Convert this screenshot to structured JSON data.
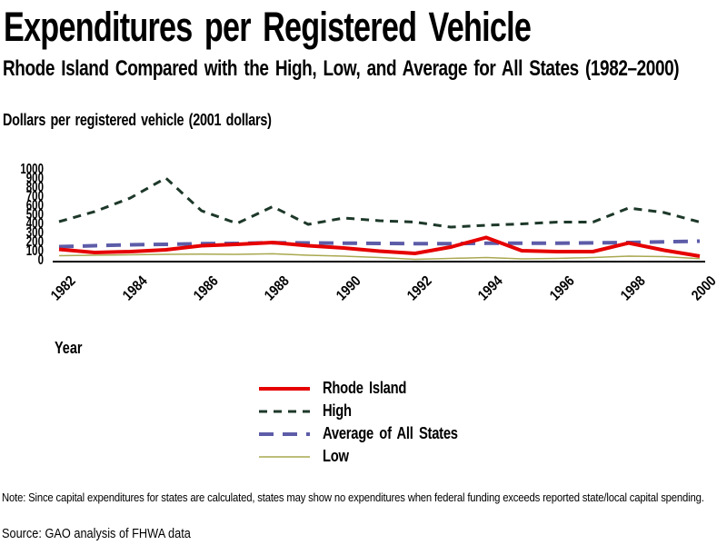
{
  "title": "Expenditures per Registered Vehicle",
  "subtitle": "Rhode Island Compared with the High, Low, and Average for All States (1982–2000)",
  "units_label": "Dollars per registered vehicle (2001 dollars)",
  "xaxis_label": "Year",
  "note": "Note: Since capital expenditures for states are calculated, states may show no expenditures when federal funding exceeds reported state/local capital spending.",
  "source": "Source: GAO analysis of FHWA data",
  "colors": {
    "rhode_island": "#e60000",
    "high": "#1d3829",
    "average": "#5c5ca8",
    "low": "#a9a850",
    "axis": "#000000",
    "text": "#000000",
    "background": "#ffffff"
  },
  "chart_data": {
    "type": "line",
    "title": "Expenditures per Registered Vehicle",
    "subtitle": "Rhode Island Compared with the High, Low, and Average for All States (1982–2000)",
    "ylabel": "Dollars per registered vehicle (2001 dollars)",
    "xlabel": "Year",
    "ylim": [
      0,
      1000
    ],
    "y_ticks": [
      0,
      100,
      200,
      300,
      400,
      500,
      600,
      700,
      800,
      900,
      1000
    ],
    "x_tick_labels": [
      "1982",
      "1984",
      "1986",
      "1988",
      "1990",
      "1992",
      "1994",
      "1996",
      "1998",
      "2000"
    ],
    "grid": false,
    "legend_position": "bottom-center",
    "x": [
      1982,
      1983,
      1984,
      1985,
      1986,
      1987,
      1988,
      1989,
      1990,
      1991,
      1992,
      1993,
      1994,
      1995,
      1996,
      1997,
      1998,
      1999,
      2000
    ],
    "series": [
      {
        "name": "Rhode Island",
        "color": "#e60000",
        "style": "solid",
        "width": 4,
        "values": [
          125,
          90,
          100,
          120,
          165,
          180,
          200,
          165,
          140,
          105,
          80,
          150,
          255,
          110,
          100,
          100,
          195,
          115,
          50
        ]
      },
      {
        "name": "High",
        "color": "#1d3829",
        "style": "dashed",
        "width": 3,
        "values": [
          430,
          540,
          690,
          910,
          550,
          410,
          595,
          400,
          470,
          440,
          425,
          370,
          390,
          405,
          425,
          425,
          580,
          530,
          425
        ]
      },
      {
        "name": "Average of All States",
        "color": "#5c5ca8",
        "style": "long-dash",
        "width": 4,
        "values": [
          155,
          165,
          175,
          180,
          187,
          190,
          198,
          195,
          193,
          190,
          188,
          188,
          192,
          192,
          193,
          196,
          200,
          208,
          215
        ]
      },
      {
        "name": "Low",
        "color": "#a9a850",
        "style": "solid",
        "width": 1.5,
        "values": [
          55,
          60,
          65,
          70,
          72,
          70,
          76,
          60,
          50,
          35,
          15,
          25,
          35,
          20,
          25,
          35,
          50,
          45,
          22
        ]
      }
    ]
  }
}
